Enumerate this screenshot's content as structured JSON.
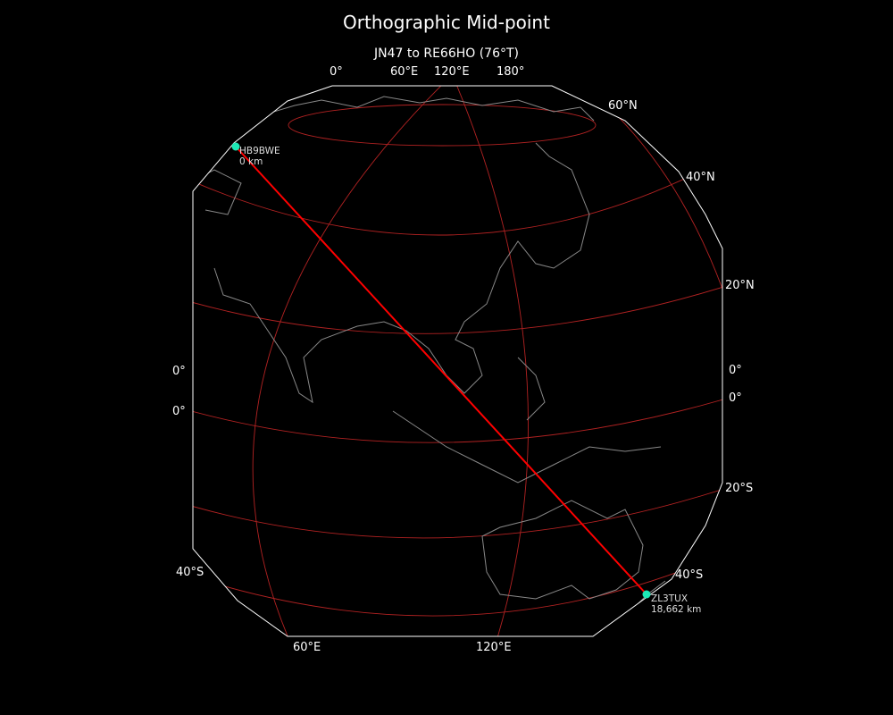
{
  "title": "Orthographic Mid-point",
  "subtitle": "JN47 to RE66HO (76°T)",
  "graticule_labels": {
    "top": [
      "0°",
      "60°E",
      "120°E",
      "180°"
    ],
    "bottom": [
      "60°E",
      "120°E"
    ],
    "left": [
      "0°",
      "0°",
      "40°S"
    ],
    "right": [
      "60°N",
      "40°N",
      "20°N",
      "0°",
      "0°",
      "20°S",
      "40°S"
    ]
  },
  "markers": [
    {
      "call": "HB9BWE",
      "distance": "0 km"
    },
    {
      "call": "ZL3TUX",
      "distance": "18,662 km"
    }
  ],
  "colors": {
    "background": "#000000",
    "path": "#ff0000",
    "marker": "#1de9b6",
    "graticule": "#b22222",
    "coastline": "#888888",
    "boundary": "#ffffff"
  }
}
